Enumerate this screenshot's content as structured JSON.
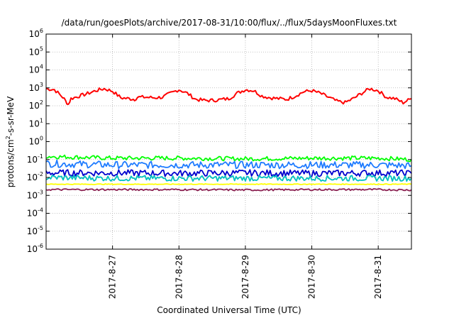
{
  "chart_data": {
    "type": "line",
    "title": "/data/run/goesPlots/archive/2017-08-31/10:00/flux/../flux/5daysMoonFluxes.txt",
    "xlabel": "Coordinated Universal Time (UTC)",
    "ylabel": {
      "prefix": "protons/cm",
      "superscript": "2",
      "suffix": "-s-sr-MeV"
    },
    "yscale": "log",
    "ylim": [
      1e-06,
      1000000.0
    ],
    "y_ticks": [
      {
        "value": 1e-06,
        "mantissa": "10",
        "exp": "-6"
      },
      {
        "value": 1e-05,
        "mantissa": "10",
        "exp": "-5"
      },
      {
        "value": 0.0001,
        "mantissa": "10",
        "exp": "-4"
      },
      {
        "value": 0.001,
        "mantissa": "10",
        "exp": "-3"
      },
      {
        "value": 0.01,
        "mantissa": "10",
        "exp": "-2"
      },
      {
        "value": 0.1,
        "mantissa": "10",
        "exp": "-1"
      },
      {
        "value": 1,
        "mantissa": "10",
        "exp": "0"
      },
      {
        "value": 10,
        "mantissa": "10",
        "exp": "1"
      },
      {
        "value": 100,
        "mantissa": "10",
        "exp": "2"
      },
      {
        "value": 1000,
        "mantissa": "10",
        "exp": "3"
      },
      {
        "value": 10000,
        "mantissa": "10",
        "exp": "4"
      },
      {
        "value": 100000,
        "mantissa": "10",
        "exp": "5"
      },
      {
        "value": 1000000,
        "mantissa": "10",
        "exp": "6"
      }
    ],
    "xlim": [
      "2017-08-26T00:00",
      "2017-08-31T12:00"
    ],
    "x_ticks": [
      {
        "value": "2017-08-27T00:00",
        "label": "2017-8-27"
      },
      {
        "value": "2017-08-28T00:00",
        "label": "2017-8-28"
      },
      {
        "value": "2017-08-29T00:00",
        "label": "2017-8-29"
      },
      {
        "value": "2017-08-30T00:00",
        "label": "2017-8-30"
      },
      {
        "value": "2017-08-31T00:00",
        "label": "2017-8-31"
      }
    ],
    "grid": true,
    "series": [
      {
        "color": "#ff0000",
        "x": [
          "2017-08-26T00:00",
          "2017-08-26T03:00",
          "2017-08-26T06:00",
          "2017-08-26T08:00",
          "2017-08-26T09:00",
          "2017-08-26T12:00",
          "2017-08-26T15:00",
          "2017-08-26T18:00",
          "2017-08-26T21:00",
          "2017-08-27T00:00",
          "2017-08-27T03:00",
          "2017-08-27T06:00",
          "2017-08-27T08:00",
          "2017-08-27T09:00",
          "2017-08-27T12:00",
          "2017-08-27T15:00",
          "2017-08-27T18:00",
          "2017-08-27T21:00",
          "2017-08-28T00:00",
          "2017-08-28T03:00",
          "2017-08-28T06:00",
          "2017-08-28T09:00",
          "2017-08-28T12:00",
          "2017-08-28T15:00",
          "2017-08-28T18:00",
          "2017-08-28T21:00",
          "2017-08-29T00:00",
          "2017-08-29T03:00",
          "2017-08-29T06:00",
          "2017-08-29T09:00",
          "2017-08-29T12:00",
          "2017-08-29T15:00",
          "2017-08-29T18:00",
          "2017-08-29T21:00",
          "2017-08-30T00:00",
          "2017-08-30T03:00",
          "2017-08-30T06:00",
          "2017-08-30T09:00",
          "2017-08-30T12:00",
          "2017-08-30T15:00",
          "2017-08-30T18:00",
          "2017-08-30T21:00",
          "2017-08-31T00:00",
          "2017-08-31T03:00",
          "2017-08-31T06:00",
          "2017-08-31T09:00",
          "2017-08-31T12:00"
        ],
        "values": [
          900,
          800,
          300,
          120,
          250,
          350,
          480,
          700,
          900,
          650,
          280,
          250,
          230,
          300,
          300,
          280,
          300,
          500,
          800,
          500,
          230,
          200,
          200,
          220,
          250,
          500,
          800,
          700,
          350,
          280,
          250,
          230,
          350,
          600,
          700,
          500,
          300,
          180,
          150,
          250,
          500,
          900,
          700,
          300,
          250,
          150,
          250
        ]
      },
      {
        "color": "#00ff00",
        "x": [
          "2017-08-26T00:00",
          "2017-08-27T00:00",
          "2017-08-28T00:00",
          "2017-08-29T00:00",
          "2017-08-30T00:00",
          "2017-08-31T00:00",
          "2017-08-31T12:00"
        ],
        "values": [
          0.15,
          0.12,
          0.12,
          0.11,
          0.12,
          0.12,
          0.1
        ]
      },
      {
        "color": "#1e7bff",
        "x": [
          "2017-08-26T00:00",
          "2017-08-27T00:00",
          "2017-08-28T00:00",
          "2017-08-29T00:00",
          "2017-08-30T00:00",
          "2017-08-31T00:00",
          "2017-08-31T12:00"
        ],
        "values": [
          0.06,
          0.05,
          0.05,
          0.05,
          0.05,
          0.05,
          0.045
        ]
      },
      {
        "color": "#0000cd",
        "x": [
          "2017-08-26T00:00",
          "2017-08-27T00:00",
          "2017-08-28T00:00",
          "2017-08-29T00:00",
          "2017-08-30T00:00",
          "2017-08-31T00:00",
          "2017-08-31T12:00"
        ],
        "values": [
          0.018,
          0.018,
          0.017,
          0.018,
          0.017,
          0.018,
          0.017
        ]
      },
      {
        "color": "#00c0c0",
        "x": [
          "2017-08-26T00:00",
          "2017-08-27T00:00",
          "2017-08-28T00:00",
          "2017-08-29T00:00",
          "2017-08-30T00:00",
          "2017-08-31T00:00",
          "2017-08-31T12:00"
        ],
        "values": [
          0.01,
          0.009,
          0.009,
          0.009,
          0.009,
          0.009,
          0.009
        ]
      },
      {
        "color": "#ffff00",
        "x": [
          "2017-08-26T00:00",
          "2017-08-31T12:00"
        ],
        "values": [
          0.0042,
          0.0042
        ]
      },
      {
        "color": "#8b2252",
        "x": [
          "2017-08-26T00:00",
          "2017-08-27T00:00",
          "2017-08-28T00:00",
          "2017-08-29T00:00",
          "2017-08-30T00:00",
          "2017-08-31T00:00",
          "2017-08-31T12:00"
        ],
        "values": [
          0.0021,
          0.0021,
          0.0021,
          0.002,
          0.0021,
          0.0021,
          0.002
        ]
      }
    ]
  }
}
